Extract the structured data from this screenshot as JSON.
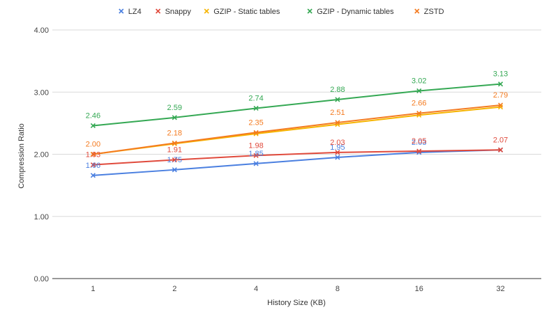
{
  "chart_data": {
    "type": "line",
    "title": "",
    "xlabel": "History Size (KB)",
    "ylabel": "Compression Ratio",
    "categories": [
      "1",
      "2",
      "4",
      "8",
      "16",
      "32"
    ],
    "ylim": [
      0,
      4
    ],
    "yticks": [
      "0.00",
      "1.00",
      "2.00",
      "3.00",
      "4.00"
    ],
    "grid": true,
    "legend_position": "top-center",
    "marker": "x",
    "series": [
      {
        "name": "LZ4",
        "color": "#4a7fe0",
        "values": [
          1.66,
          1.75,
          1.85,
          1.95,
          2.03,
          2.07
        ],
        "labels": [
          "1.66",
          "1.75",
          "1.85",
          "1.95",
          "2.03",
          ""
        ]
      },
      {
        "name": "Snappy",
        "color": "#e04a3c",
        "values": [
          1.83,
          1.91,
          1.98,
          2.03,
          2.05,
          2.07
        ],
        "labels": [
          "1.83",
          "1.91",
          "1.98",
          "2.03",
          "2.05",
          "2.07"
        ]
      },
      {
        "name": "GZIP - Static tables",
        "color": "#f6b400",
        "values": [
          2.0,
          2.17,
          2.33,
          2.48,
          2.63,
          2.76
        ],
        "labels": [
          "",
          "",
          "",
          "",
          "",
          ""
        ]
      },
      {
        "name": "GZIP - Dynamic tables",
        "color": "#34a853",
        "values": [
          2.46,
          2.59,
          2.74,
          2.88,
          3.02,
          3.13
        ],
        "labels": [
          "2.46",
          "2.59",
          "2.74",
          "2.88",
          "3.02",
          "3.13"
        ]
      },
      {
        "name": "ZSTD",
        "color": "#f47b20",
        "values": [
          2.0,
          2.18,
          2.35,
          2.51,
          2.66,
          2.79
        ],
        "labels": [
          "2.00",
          "2.18",
          "2.35",
          "2.51",
          "2.66",
          "2.79"
        ]
      }
    ]
  }
}
